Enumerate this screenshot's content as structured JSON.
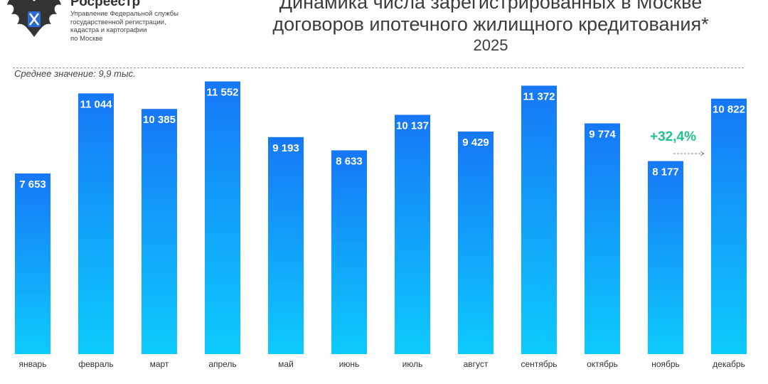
{
  "header": {
    "brand": "Росреестр",
    "organization": "Управление Федеральной службы\nгосударственной регистрации,\nкадастра и картографии\nпо Москве"
  },
  "chart_data": {
    "type": "bar",
    "title_lines": [
      "Динамика числа зарегистрированных в Москве",
      "договоров ипотечного жилищного кредитования*"
    ],
    "subtitle": "2025",
    "categories": [
      "январь",
      "февраль",
      "март",
      "апрель",
      "май",
      "июнь",
      "июль",
      "август",
      "сентябрь",
      "октябрь",
      "ноябрь",
      "декабрь"
    ],
    "values": [
      7653,
      11044,
      10385,
      11552,
      9193,
      8633,
      10137,
      9429,
      11372,
      9774,
      8177,
      10822
    ],
    "data_labels": [
      "7 653",
      "11 044",
      "10 385",
      "11 552",
      "9 193",
      "8 633",
      "10 137",
      "9 429",
      "11 372",
      "9 774",
      "8 177",
      "10 822"
    ],
    "mean_label": "Среднее значение: 9,9 тыс.",
    "annotation": {
      "text": "+32,4%",
      "from": "ноябрь",
      "to": "декабрь",
      "color": "#1fc38a"
    },
    "colors": {
      "bar_top": "#1677f7",
      "bar_bottom": "#0dcbfc",
      "label": "#ffffff"
    },
    "grid": false,
    "legend": "none"
  }
}
